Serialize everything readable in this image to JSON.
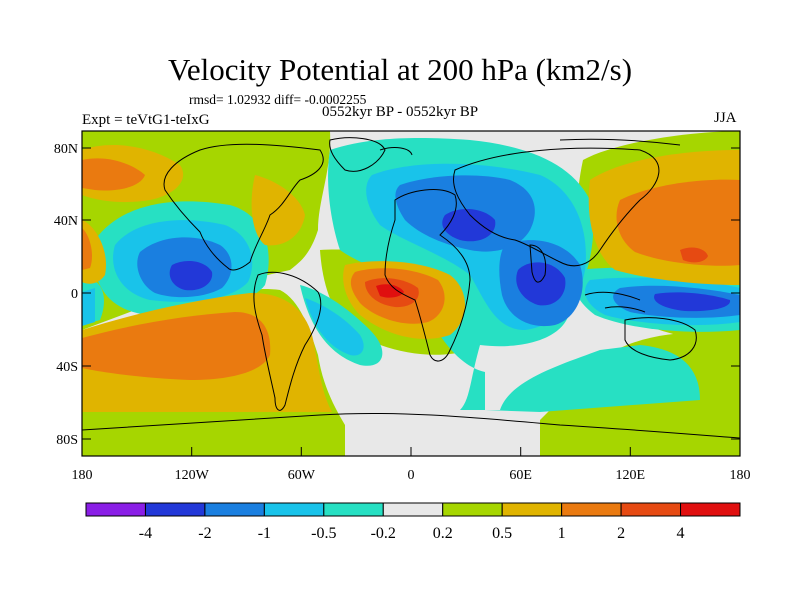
{
  "title": "Velocity Potential at 200 hPa (km2/s)",
  "stats": "rmsd= 1.02932 diff= -0.0002255",
  "period": "0552kyr BP - 0552kyr BP",
  "experiment": "Expt = teVtG1-teIxG",
  "season": "JJA",
  "y_axis_labels": [
    "80N",
    "40N",
    "0",
    "40S",
    "80S"
  ],
  "x_axis_labels": [
    "180",
    "120W",
    "60W",
    "0",
    "60E",
    "120E",
    "180"
  ],
  "colorbar": {
    "labels": [
      "-4",
      "-2",
      "-1",
      "-0.5",
      "-0.2",
      "0.2",
      "0.5",
      "1",
      "2",
      "4"
    ],
    "colors": [
      "#8a1ee6",
      "#2238d8",
      "#1a7fe0",
      "#19c3ea",
      "#27e0c3",
      "#e8e8e8",
      "#a6d600",
      "#e0b400",
      "#ea7a10",
      "#e64a12",
      "#e00f0f"
    ]
  }
}
